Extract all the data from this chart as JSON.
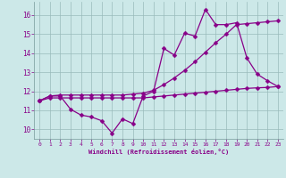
{
  "xlabel": "Windchill (Refroidissement éolien,°C)",
  "bg_color": "#cce8e8",
  "line_color": "#880088",
  "grid_color": "#99bbbb",
  "xlim": [
    -0.5,
    23.5
  ],
  "ylim": [
    9.5,
    16.7
  ],
  "xticks": [
    0,
    1,
    2,
    3,
    4,
    5,
    6,
    7,
    8,
    9,
    10,
    11,
    12,
    13,
    14,
    15,
    16,
    17,
    18,
    19,
    20,
    21,
    22,
    23
  ],
  "yticks": [
    10,
    11,
    12,
    13,
    14,
    15,
    16
  ],
  "line1_x": [
    0,
    1,
    2,
    3,
    4,
    5,
    6,
    7,
    8,
    9,
    10,
    11,
    12,
    13,
    14,
    15,
    16,
    17,
    18,
    19,
    20,
    21,
    22,
    23
  ],
  "line1_y": [
    11.5,
    11.75,
    11.75,
    11.05,
    10.75,
    10.65,
    10.45,
    9.8,
    10.55,
    10.3,
    11.75,
    12.0,
    14.25,
    13.9,
    15.05,
    14.9,
    16.3,
    15.5,
    15.5,
    15.6,
    13.75,
    12.9,
    12.55,
    12.25
  ],
  "line2_x": [
    0,
    1,
    2,
    3,
    4,
    5,
    6,
    7,
    8,
    9,
    10,
    11,
    12,
    13,
    14,
    15,
    16,
    17,
    18,
    19,
    20,
    21,
    22,
    23
  ],
  "line2_y": [
    11.5,
    11.75,
    11.8,
    11.8,
    11.8,
    11.8,
    11.8,
    11.8,
    11.8,
    11.85,
    11.9,
    12.05,
    12.35,
    12.7,
    13.1,
    13.55,
    14.05,
    14.55,
    15.0,
    15.5,
    15.55,
    15.6,
    15.65,
    15.7
  ],
  "line3_x": [
    0,
    1,
    2,
    3,
    4,
    5,
    6,
    7,
    8,
    9,
    10,
    11,
    12,
    13,
    14,
    15,
    16,
    17,
    18,
    19,
    20,
    21,
    22,
    23
  ],
  "line3_y": [
    11.5,
    11.65,
    11.65,
    11.65,
    11.65,
    11.65,
    11.65,
    11.65,
    11.65,
    11.65,
    11.65,
    11.7,
    11.75,
    11.8,
    11.85,
    11.9,
    11.95,
    12.0,
    12.05,
    12.1,
    12.15,
    12.18,
    12.2,
    12.25
  ]
}
